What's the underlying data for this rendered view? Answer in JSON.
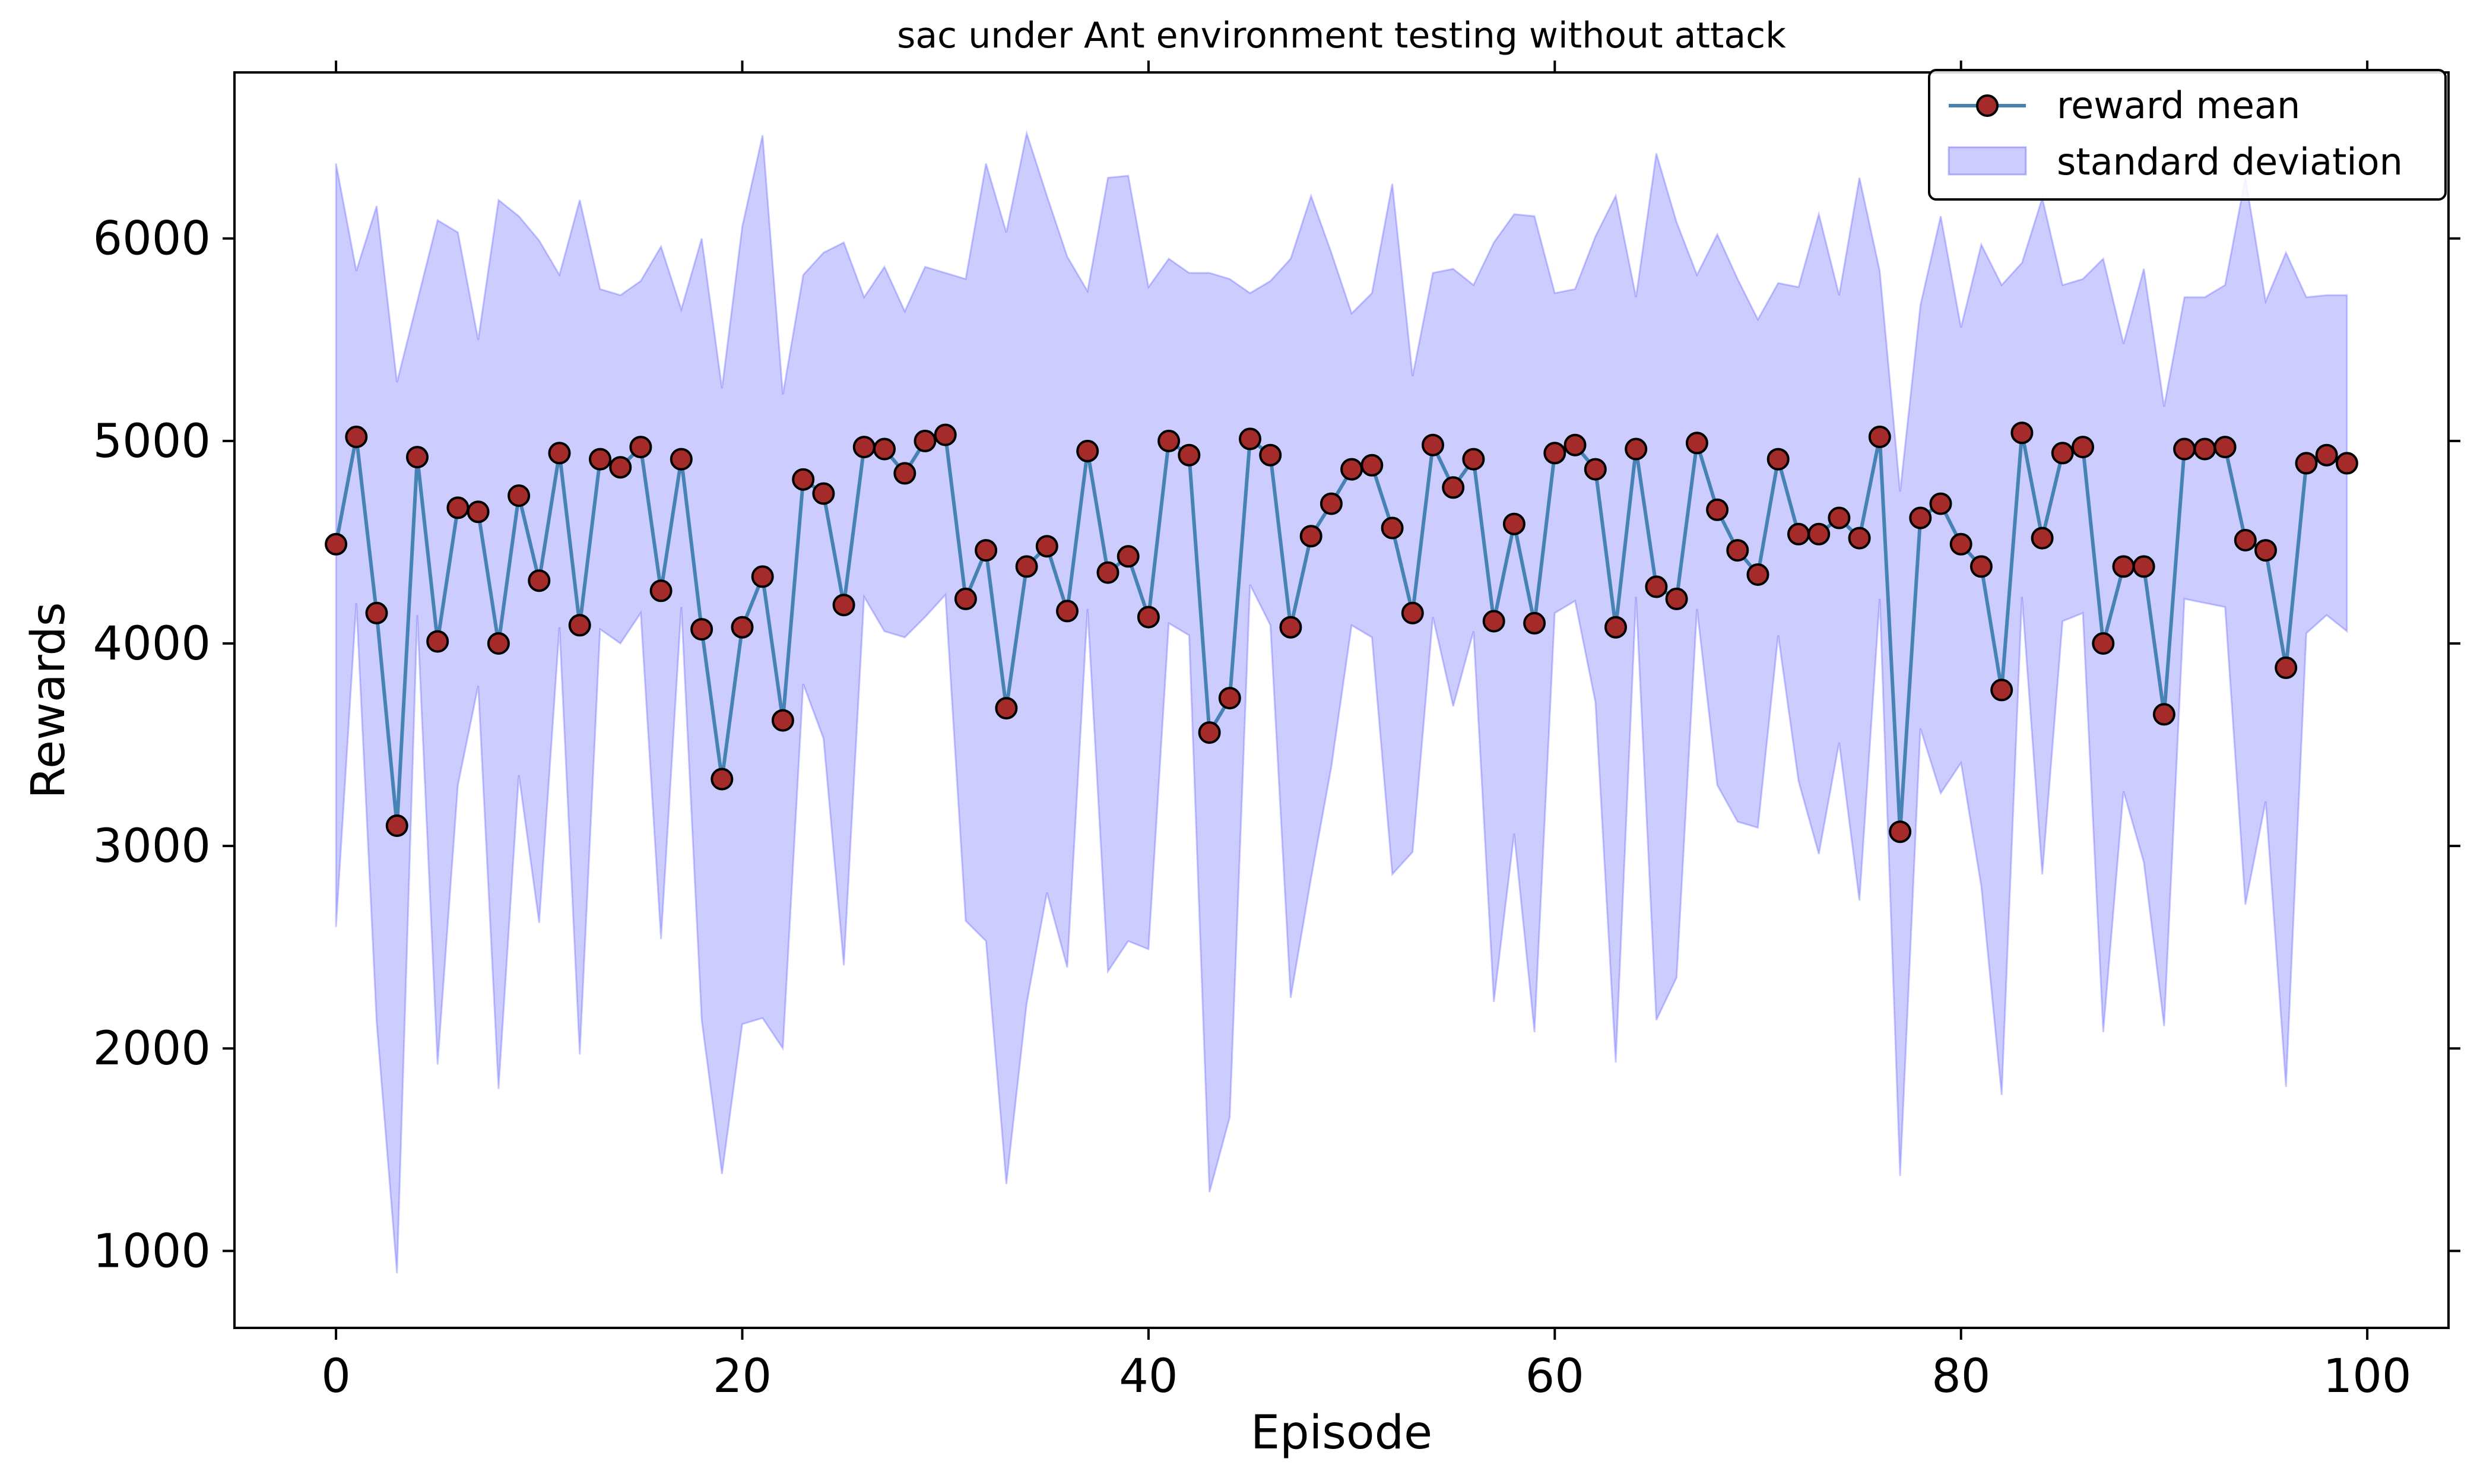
{
  "chart_data": {
    "type": "line",
    "title": "sac under Ant environment testing without attack",
    "xlabel": "Episode",
    "ylabel": "Rewards",
    "xlim": [
      -5,
      104
    ],
    "ylim": [
      620,
      6820
    ],
    "xticks": [
      0,
      20,
      40,
      60,
      80,
      100
    ],
    "yticks": [
      1000,
      2000,
      3000,
      4000,
      5000,
      6000
    ],
    "legend_position": "top-right",
    "grid": false,
    "series": [
      {
        "name": "reward mean",
        "kind": "line",
        "color": "#4682b4",
        "marker_fill": "#a52a2a",
        "marker_edge": "#000000",
        "x": [
          0,
          1,
          2,
          3,
          4,
          5,
          6,
          7,
          8,
          9,
          10,
          11,
          12,
          13,
          14,
          15,
          16,
          17,
          18,
          19,
          20,
          21,
          22,
          23,
          24,
          25,
          26,
          27,
          28,
          29,
          30,
          31,
          32,
          33,
          34,
          35,
          36,
          37,
          38,
          39,
          40,
          41,
          42,
          43,
          44,
          45,
          46,
          47,
          48,
          49,
          50,
          51,
          52,
          53,
          54,
          55,
          56,
          57,
          58,
          59,
          60,
          61,
          62,
          63,
          64,
          65,
          66,
          67,
          68,
          69,
          70,
          71,
          72,
          73,
          74,
          75,
          76,
          77,
          78,
          79,
          80,
          81,
          82,
          83,
          84,
          85,
          86,
          87,
          88,
          89,
          90,
          91,
          92,
          93,
          94,
          95,
          96,
          97,
          98,
          99
        ],
        "values": [
          4490,
          5020,
          4150,
          3100,
          4920,
          4010,
          4670,
          4650,
          4000,
          4730,
          4310,
          4940,
          4090,
          4910,
          4870,
          4970,
          4260,
          4910,
          4070,
          3330,
          4080,
          4330,
          3620,
          4810,
          4740,
          4190,
          4970,
          4960,
          4840,
          5000,
          5030,
          4220,
          4460,
          3680,
          4380,
          4480,
          4160,
          4950,
          4350,
          4430,
          4130,
          5000,
          4930,
          3560,
          3730,
          5010,
          4930,
          4080,
          4530,
          4690,
          4860,
          4880,
          4570,
          4150,
          4980,
          4770,
          4910,
          4110,
          4590,
          4100,
          4940,
          4980,
          4860,
          4080,
          4960,
          4280,
          4220,
          4990,
          4660,
          4460,
          4340,
          4910,
          4540,
          4540,
          4620,
          4520,
          5020,
          3070,
          4620,
          4690,
          4490,
          4380,
          3770,
          5040,
          4520,
          4940,
          4970,
          4000,
          4380,
          4380,
          3650,
          4960,
          4960,
          4970,
          4510,
          4460,
          3880,
          4890,
          4930,
          4890
        ]
      },
      {
        "name": "standard deviation",
        "kind": "band",
        "color": "#0000ff",
        "upper": [
          6370,
          5840,
          6160,
          5290,
          5690,
          6090,
          6030,
          5500,
          6190,
          6110,
          5990,
          5820,
          6190,
          5750,
          5720,
          5790,
          5960,
          5650,
          6000,
          5260,
          6060,
          6510,
          5230,
          5820,
          5930,
          5980,
          5710,
          5860,
          5640,
          5860,
          5830,
          5800,
          6370,
          6030,
          6520,
          6210,
          5910,
          5740,
          6300,
          6310,
          5760,
          5900,
          5830,
          5830,
          5800,
          5730,
          5790,
          5900,
          6210,
          5930,
          5630,
          5730,
          6270,
          5320,
          5830,
          5850,
          5770,
          5980,
          6120,
          6110,
          5730,
          5750,
          6010,
          6210,
          5710,
          6420,
          6080,
          5820,
          6020,
          5800,
          5600,
          5780,
          5760,
          6120,
          5720,
          6300,
          5840,
          4750,
          5670,
          6110,
          5560,
          5970,
          5770,
          5880,
          6200,
          5770,
          5800,
          5900,
          5480,
          5850,
          5170,
          5710,
          5710,
          5770,
          6300,
          5690,
          5930,
          5710,
          5720,
          5720
        ],
        "lower": [
          2600,
          4200,
          2130,
          890,
          4140,
          1920,
          3300,
          3790,
          1800,
          3350,
          2620,
          4080,
          1970,
          4070,
          4000,
          4150,
          2540,
          4180,
          2140,
          1380,
          2120,
          2150,
          2000,
          3800,
          3530,
          2410,
          4230,
          4060,
          4030,
          4130,
          4240,
          2630,
          2530,
          1330,
          2220,
          2770,
          2400,
          4170,
          2380,
          2530,
          2490,
          4100,
          4040,
          1290,
          1660,
          4290,
          4090,
          2250,
          2840,
          3390,
          4090,
          4030,
          2860,
          2970,
          4130,
          3690,
          4060,
          2230,
          3060,
          2080,
          4150,
          4210,
          3710,
          1930,
          4230,
          2140,
          2350,
          4170,
          3300,
          3120,
          3090,
          4040,
          3320,
          2960,
          3510,
          2730,
          4220,
          1370,
          3580,
          3260,
          3410,
          2800,
          1770,
          4230,
          2860,
          4110,
          4150,
          2080,
          3270,
          2920,
          2110,
          4220,
          4200,
          4180,
          2710,
          3220,
          1810,
          4050,
          4140,
          4060
        ]
      }
    ]
  }
}
